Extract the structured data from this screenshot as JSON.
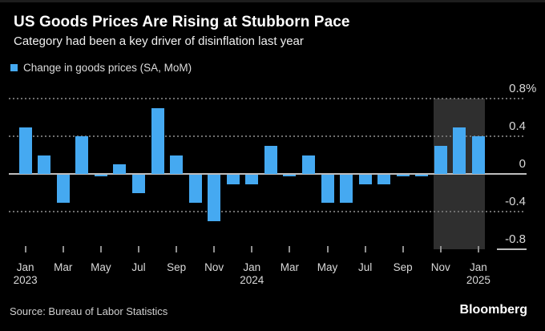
{
  "header": {
    "title": "US Goods Prices Are Rising at Stubborn Pace",
    "subtitle": "Category had been a key driver of disinflation last year"
  },
  "legend": {
    "label": "Change in goods prices (SA, MoM)"
  },
  "footer": {
    "source": "Source: Bureau of Labor Statistics",
    "brand": "Bloomberg"
  },
  "colors": {
    "background": "#000000",
    "bar": "#45a9f1",
    "highlight_band": "#2f2f2f",
    "grid_dotted": "#6e6e6e",
    "zero_line": "#bdbdbd",
    "tick": "#8f8f8f",
    "text_primary": "#ffffff",
    "text_secondary": "#d9d9d9"
  },
  "chart_data": {
    "type": "bar",
    "title": "US Goods Prices Are Rising at Stubborn Pace",
    "subtitle": "Category had been a key driver of disinflation last year",
    "series_name": "Change in goods prices (SA, MoM)",
    "unit": "%",
    "categories": [
      "Jan 2023",
      "Feb 2023",
      "Mar 2023",
      "Apr 2023",
      "May 2023",
      "Jun 2023",
      "Jul 2023",
      "Aug 2023",
      "Sep 2023",
      "Oct 2023",
      "Nov 2023",
      "Dec 2023",
      "Jan 2024",
      "Feb 2024",
      "Mar 2024",
      "Apr 2024",
      "May 2024",
      "Jun 2024",
      "Jul 2024",
      "Aug 2024",
      "Sep 2024",
      "Oct 2024",
      "Nov 2024",
      "Dec 2024",
      "Jan 2025"
    ],
    "values": [
      0.5,
      0.2,
      -0.3,
      0.4,
      -0.02,
      0.1,
      -0.2,
      0.7,
      0.2,
      -0.3,
      -0.5,
      -0.1,
      -0.1,
      0.3,
      -0.02,
      0.2,
      -0.3,
      -0.3,
      -0.1,
      -0.1,
      -0.02,
      -0.02,
      0.3,
      0.5,
      0.4
    ],
    "ylim": [
      -0.8,
      0.8
    ],
    "yticks": [
      0.8,
      0.4,
      0,
      -0.4,
      -0.8
    ],
    "ytick_labels": [
      "0.8",
      "0.4",
      "0",
      "-0.4",
      "-0.8"
    ],
    "grid": "horizontal dotted at 0.8/0.4/-0.4, solid baseline at 0, short right-margin segment at -0.8",
    "legend_position": "top-left",
    "xticks": [
      {
        "index": 0,
        "month": "Jan",
        "year": "2023"
      },
      {
        "index": 2,
        "month": "Mar"
      },
      {
        "index": 4,
        "month": "May"
      },
      {
        "index": 6,
        "month": "Jul"
      },
      {
        "index": 8,
        "month": "Sep"
      },
      {
        "index": 10,
        "month": "Nov"
      },
      {
        "index": 12,
        "month": "Jan",
        "year": "2024"
      },
      {
        "index": 14,
        "month": "Mar"
      },
      {
        "index": 16,
        "month": "May"
      },
      {
        "index": 18,
        "month": "Jul"
      },
      {
        "index": 20,
        "month": "Sep"
      },
      {
        "index": 22,
        "month": "Nov"
      },
      {
        "index": 24,
        "month": "Jan",
        "year": "2025"
      }
    ],
    "highlight_region": {
      "from": "Nov 2024",
      "to": "Jan 2025",
      "start_index": 22,
      "end_index": 24
    }
  }
}
